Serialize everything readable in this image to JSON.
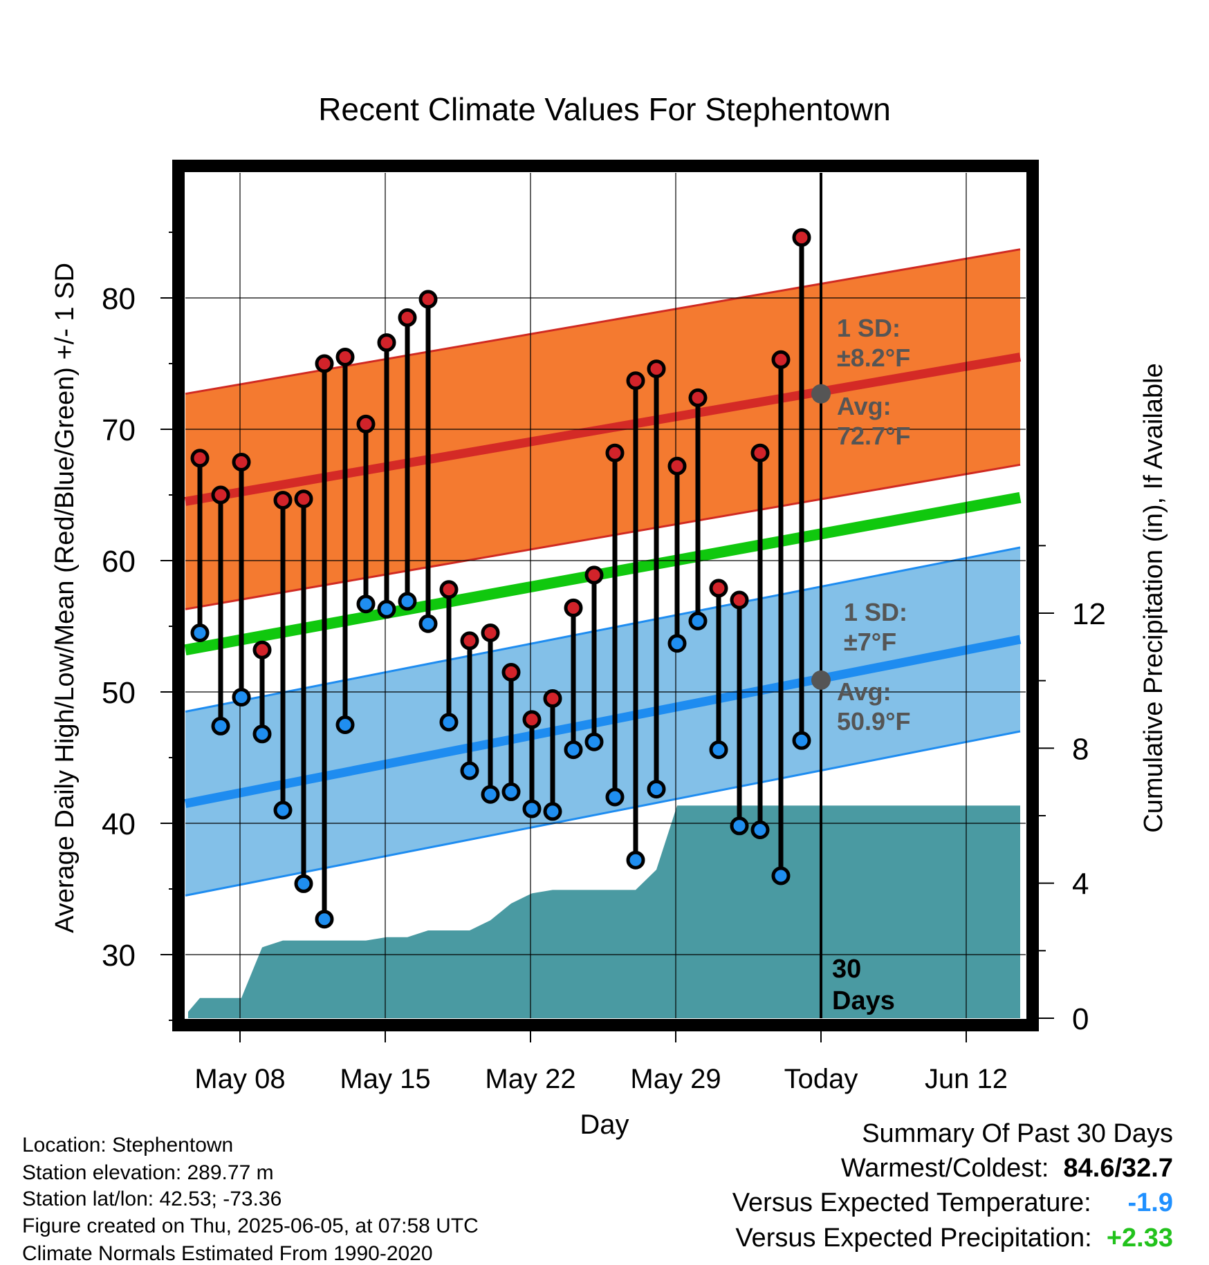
{
  "chart_data": {
    "type": "line",
    "title": "Recent Climate Values For Stephentown",
    "xlabel": "Day",
    "ylabel": "Average Daily High/Low/Mean (Red/Blue/Green) +/- 1 SD",
    "y2label": "Cumulative Precipitation (in), If Available",
    "ylim": [
      25,
      90
    ],
    "y2lim": [
      0,
      22
    ],
    "x_tick_labels": [
      "May 08",
      "May 15",
      "May 22",
      "May 29",
      "Today",
      "Jun 12"
    ],
    "y_ticks": [
      "30",
      "40",
      "50",
      "60",
      "70",
      "80"
    ],
    "y2_ticks": [
      "0",
      "4",
      "8",
      "12"
    ],
    "today_label": "30 Days",
    "high_band": {
      "avg_label": "Avg:",
      "avg_value": "72.7°F",
      "sd_label": "1 SD:",
      "sd_value": "±8.2°F",
      "avg_start": 64.5,
      "avg_end": 75.5,
      "sd": 8.2
    },
    "low_band": {
      "avg_label": "Avg:",
      "avg_value": "50.9°F",
      "sd_label": "1 SD:",
      "sd_value": "±7°F",
      "avg_start": 41.5,
      "avg_end": 54.0,
      "sd": 7.0
    },
    "mean_line": {
      "start": 53.2,
      "end": 64.8
    },
    "highs": [
      67.8,
      65.0,
      67.5,
      53.2,
      64.6,
      64.7,
      75.0,
      75.5,
      70.4,
      76.6,
      78.5,
      79.9,
      57.8,
      53.9,
      54.5,
      51.5,
      47.9,
      49.5,
      56.4,
      58.9,
      68.2,
      73.7,
      74.6,
      67.2,
      72.4,
      57.9,
      57.0,
      68.2,
      75.3,
      84.6
    ],
    "lows": [
      54.5,
      47.4,
      49.6,
      46.8,
      41.0,
      35.4,
      32.7,
      47.5,
      56.7,
      56.3,
      56.9,
      55.2,
      47.7,
      44.0,
      42.2,
      42.4,
      41.1,
      40.9,
      45.6,
      46.2,
      42.0,
      37.2,
      42.6,
      53.7,
      55.4,
      45.6,
      39.8,
      39.5,
      36.0,
      46.3
    ],
    "precip_cumulative": [
      0.6,
      0.6,
      0.6,
      2.1,
      2.3,
      2.3,
      2.3,
      2.3,
      2.3,
      2.4,
      2.4,
      2.6,
      2.6,
      2.6,
      2.9,
      3.4,
      3.7,
      3.8,
      3.8,
      3.8,
      3.8,
      3.8,
      4.4,
      6.3,
      6.3,
      6.3,
      6.3,
      6.3,
      6.3,
      6.3
    ]
  },
  "info": {
    "location": "Location: Stephentown",
    "elevation": "Station elevation: 289.77 m",
    "latlon": "Station lat/lon: 42.53; -73.36",
    "created": "Figure created on Thu, 2025-06-05, at 07:58 UTC",
    "normals": "Climate Normals Estimated From 1990-2020"
  },
  "summary": {
    "heading": "Summary Of Past 30 Days",
    "warm_cold_label": "Warmest/Coldest:",
    "warm_cold_value": "84.6/32.7",
    "temp_label": "Versus Expected Temperature:",
    "temp_value": "-1.9",
    "precip_label": "Versus Expected Precipitation:",
    "precip_value": "+2.33"
  }
}
